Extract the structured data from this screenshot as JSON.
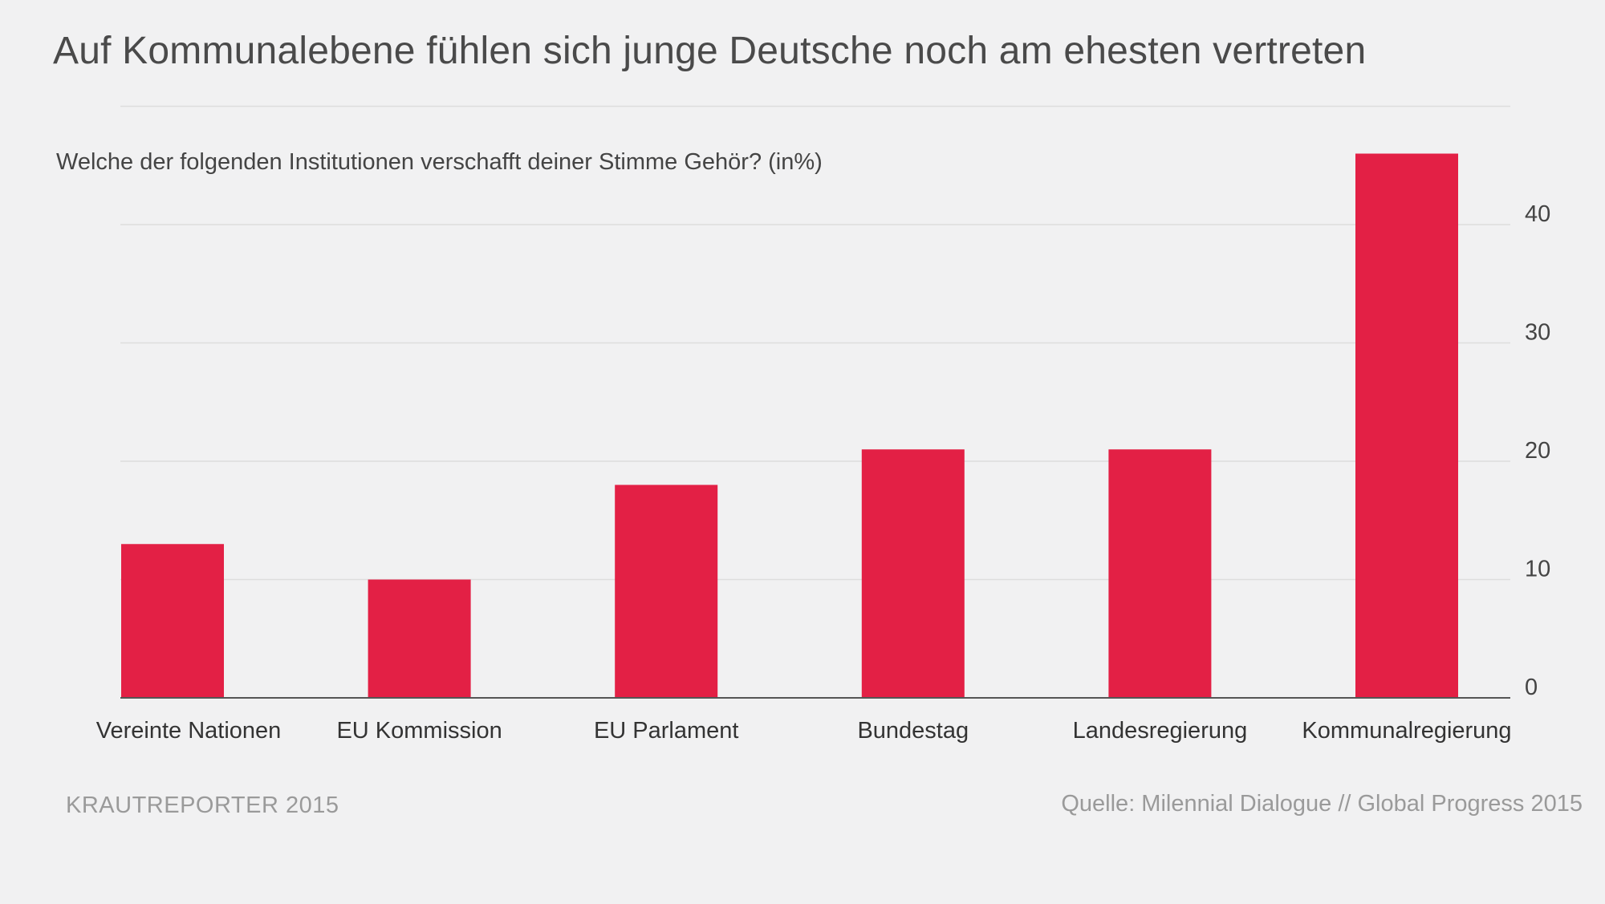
{
  "title": "Auf Kommunalebene fühlen sich junge Deutsche noch am ehesten vertreten",
  "subtitle": "Welche der folgenden Institutionen verschafft deiner Stimme Gehör? (in%)",
  "footer": {
    "brand": "KRAUTREPORTER 2015",
    "source": "Quelle: Milennial Dialogue // Global Progress 2015"
  },
  "colors": {
    "bar": "#e32045",
    "grid": "#dddddd",
    "axis": "#555555",
    "background": "#f1f1f2"
  },
  "chart_data": {
    "type": "bar",
    "categories": [
      "Vereinte Nationen",
      "EU Kommission",
      "EU Parlament",
      "Bundestag",
      "Landesregierung",
      "Kommunalregierung"
    ],
    "values": [
      13,
      10,
      18,
      21,
      21,
      46
    ],
    "yticks": [
      0,
      10,
      20,
      30,
      40
    ],
    "ylim": [
      0,
      50
    ],
    "y_axis_position": "right",
    "grid": true,
    "xlabel": "",
    "ylabel": ""
  }
}
